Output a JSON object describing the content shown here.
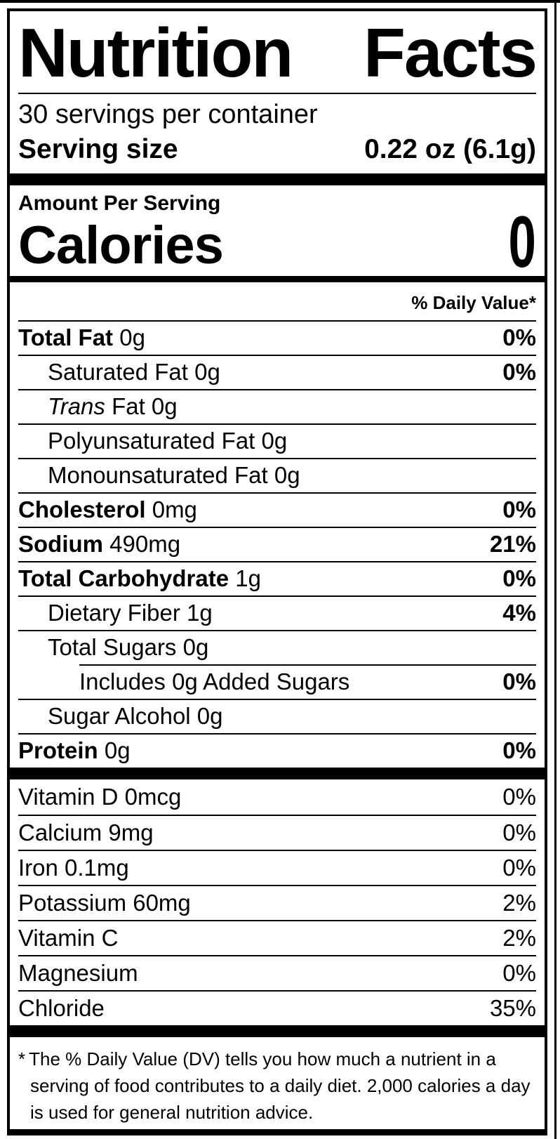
{
  "page": {
    "background_color": "#ffffff",
    "label_border_color": "#000000"
  },
  "label": {
    "title": "Nutrition Facts",
    "servings_per_container": "30 servings per container",
    "serving_size": {
      "label": "Serving size",
      "value": "0.22 oz (6.1g)"
    },
    "amount_per_serving": "Amount Per Serving",
    "calories": {
      "label": "Calories",
      "value": "0"
    },
    "daily_value_header": "% Daily Value*",
    "nutrients": [
      {
        "bold": "Total Fat",
        "rest": "0g",
        "dv": "0%",
        "indent": 0
      },
      {
        "rest": "Saturated Fat 0g",
        "dv": "0%",
        "indent": 1
      },
      {
        "italic": "Trans",
        "rest": " Fat 0g",
        "dv": "",
        "indent": 1
      },
      {
        "rest": "Polyunsaturated Fat 0g",
        "dv": "",
        "indent": 1
      },
      {
        "rest": "Monounsaturated Fat 0g",
        "dv": "",
        "indent": 1
      },
      {
        "bold": "Cholesterol",
        "rest": "0mg",
        "dv": "0%",
        "indent": 0
      },
      {
        "bold": "Sodium",
        "rest": "490mg",
        "dv": "21%",
        "indent": 0
      },
      {
        "bold": "Total Carbohydrate",
        "rest": "1g",
        "dv": "0%",
        "indent": 0
      },
      {
        "rest": "Dietary Fiber 1g",
        "dv": "4%",
        "indent": 1
      },
      {
        "rest": "Total Sugars 0g",
        "dv": "",
        "indent": 1
      },
      {
        "rest": "Includes 0g Added Sugars",
        "dv": "0%",
        "indent": 2
      },
      {
        "rest": "Sugar Alcohol 0g",
        "dv": "",
        "indent": 1
      },
      {
        "bold": "Protein",
        "rest": "0g",
        "dv": "0%",
        "indent": 0
      }
    ],
    "vitamins": [
      {
        "name": "Vitamin D 0mcg",
        "dv": "0%"
      },
      {
        "name": "Calcium 9mg",
        "dv": "0%"
      },
      {
        "name": "Iron 0.1mg",
        "dv": "0%"
      },
      {
        "name": "Potassium 60mg",
        "dv": "2%"
      },
      {
        "name": "Vitamin C",
        "dv": "2%"
      },
      {
        "name": "Magnesium",
        "dv": "0%"
      },
      {
        "name": "Chloride",
        "dv": "35%"
      }
    ],
    "footnote_marker": "*",
    "footnote": "The % Daily Value (DV) tells you how much a nutrient in a serving of food contributes to a daily diet. 2,000 calories a day is used for general nutrition advice."
  }
}
